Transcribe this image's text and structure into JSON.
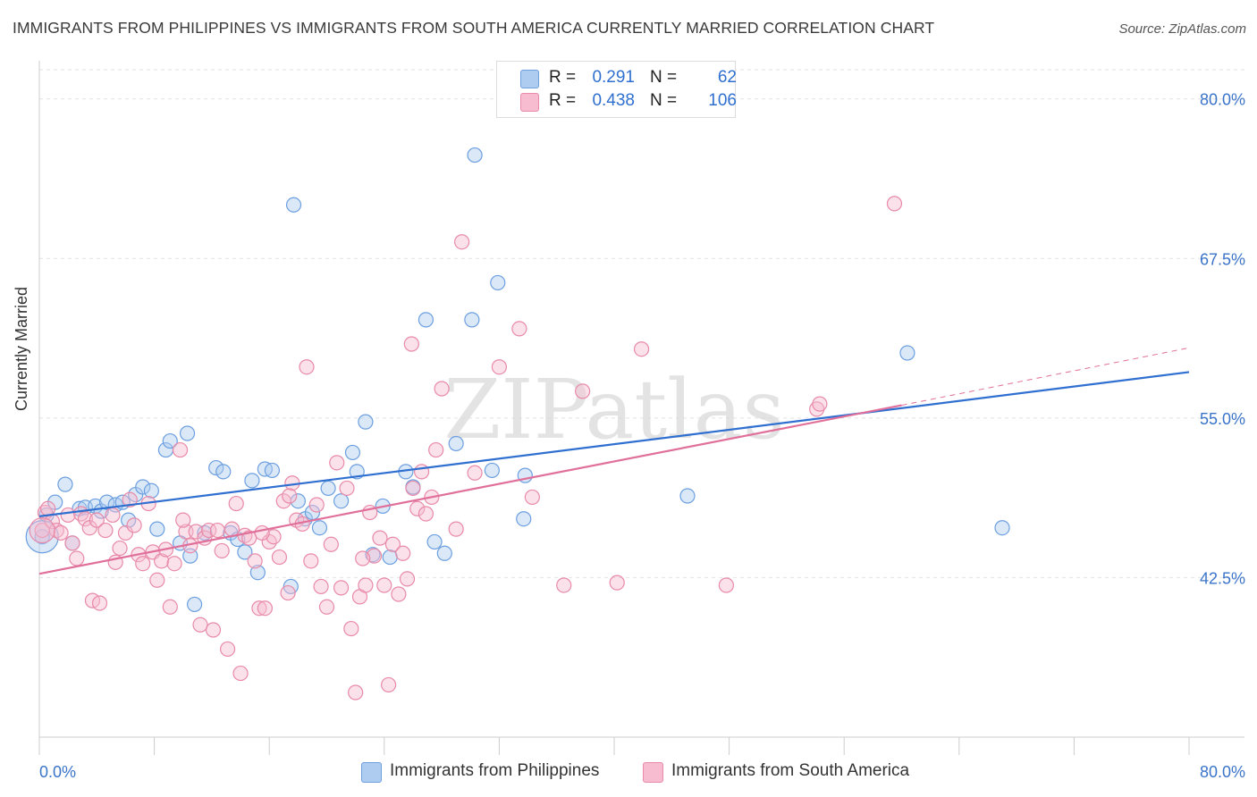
{
  "title": "IMMIGRANTS FROM PHILIPPINES VS IMMIGRANTS FROM SOUTH AMERICA CURRENTLY MARRIED CORRELATION CHART",
  "source": "Source: ZipAtlas.com",
  "watermark": "ZIPatlas",
  "legend": {
    "rows": [
      {
        "r_label": "R =",
        "r_value": "0.291",
        "n_label": "N =",
        "n_value": "62",
        "color": "#aecbf0",
        "border": "#6c9fe0"
      },
      {
        "r_label": "R =",
        "r_value": "0.438",
        "n_label": "N =",
        "n_value": "106",
        "color": "#f7bcd0",
        "border": "#e88aa8"
      }
    ]
  },
  "bottom_legend": [
    {
      "label": "Immigrants from Philippines",
      "color": "#aecbf0",
      "border": "#6c9fe0"
    },
    {
      "label": "Immigrants from South America",
      "color": "#f7bcd0",
      "border": "#e88aa8"
    }
  ],
  "chart_data": {
    "type": "scatter",
    "title": "IMMIGRANTS FROM PHILIPPINES VS IMMIGRANTS FROM SOUTH AMERICA CURRENTLY MARRIED CORRELATION CHART",
    "xlabel": "",
    "ylabel": "Currently Married",
    "xlim": [
      0,
      80
    ],
    "ylim": [
      30,
      82.5
    ],
    "x_tick_labels": [
      "0.0%",
      "80.0%"
    ],
    "y_tick_labels": [
      "42.5%",
      "55.0%",
      "67.5%",
      "80.0%"
    ],
    "y_ticks": [
      42.5,
      55.0,
      67.5,
      80.0
    ],
    "grid": true,
    "legend_position": "top-center",
    "series": [
      {
        "name": "Immigrants from Philippines",
        "color": "#6c9fe0",
        "fill": "#aecbf0",
        "trend": {
          "x": [
            0,
            80
          ],
          "y": [
            47.3,
            58.6
          ],
          "color": "#2f6fd0"
        },
        "points": [
          [
            0.2,
            45.7
          ],
          [
            0.5,
            47.4
          ],
          [
            1.1,
            48.4
          ],
          [
            1.8,
            49.8
          ],
          [
            2.3,
            45.2
          ],
          [
            2.8,
            47.9
          ],
          [
            3.2,
            48.0
          ],
          [
            3.9,
            48.1
          ],
          [
            4.3,
            47.7
          ],
          [
            4.7,
            48.4
          ],
          [
            5.3,
            48.2
          ],
          [
            5.8,
            48.4
          ],
          [
            6.2,
            47.0
          ],
          [
            6.7,
            49.0
          ],
          [
            7.2,
            49.6
          ],
          [
            7.8,
            49.3
          ],
          [
            8.2,
            46.3
          ],
          [
            8.8,
            52.5
          ],
          [
            9.1,
            53.2
          ],
          [
            9.8,
            45.2
          ],
          [
            10.3,
            53.8
          ],
          [
            10.5,
            44.2
          ],
          [
            10.8,
            40.4
          ],
          [
            11.5,
            46.0
          ],
          [
            12.3,
            51.1
          ],
          [
            12.8,
            50.8
          ],
          [
            13.3,
            46.0
          ],
          [
            13.8,
            45.5
          ],
          [
            14.3,
            44.5
          ],
          [
            14.8,
            50.1
          ],
          [
            15.2,
            42.9
          ],
          [
            15.7,
            51.0
          ],
          [
            16.2,
            50.9
          ],
          [
            17.5,
            41.8
          ],
          [
            17.7,
            71.7
          ],
          [
            18.0,
            48.5
          ],
          [
            18.5,
            47.1
          ],
          [
            19.0,
            47.6
          ],
          [
            19.5,
            46.4
          ],
          [
            20.1,
            49.5
          ],
          [
            21.0,
            48.5
          ],
          [
            21.8,
            52.3
          ],
          [
            22.1,
            50.8
          ],
          [
            22.7,
            54.7
          ],
          [
            23.2,
            44.3
          ],
          [
            23.9,
            48.1
          ],
          [
            24.4,
            44.1
          ],
          [
            25.5,
            50.8
          ],
          [
            26.0,
            49.6
          ],
          [
            26.9,
            62.7
          ],
          [
            27.5,
            45.3
          ],
          [
            28.2,
            44.4
          ],
          [
            29.0,
            53.0
          ],
          [
            30.1,
            62.7
          ],
          [
            30.3,
            75.6
          ],
          [
            31.5,
            50.9
          ],
          [
            31.9,
            65.6
          ],
          [
            33.8,
            50.5
          ],
          [
            33.7,
            47.1
          ],
          [
            45.1,
            48.9
          ],
          [
            60.4,
            60.1
          ],
          [
            67.0,
            46.4
          ]
        ]
      },
      {
        "name": "Immigrants from South America",
        "color": "#e88aa8",
        "fill": "#f7bcd0",
        "trend": {
          "x": [
            0,
            60
          ],
          "y": [
            42.8,
            56.0
          ],
          "color": "#e06f9a"
        },
        "trend_dashed": {
          "x": [
            60,
            80
          ],
          "y": [
            56.0,
            60.5
          ]
        },
        "points": [
          [
            0.2,
            46.2
          ],
          [
            0.4,
            47.6
          ],
          [
            0.6,
            47.9
          ],
          [
            0.9,
            46.9
          ],
          [
            1.2,
            46.2
          ],
          [
            1.5,
            46.0
          ],
          [
            2.0,
            47.4
          ],
          [
            2.3,
            45.2
          ],
          [
            2.6,
            44.0
          ],
          [
            2.9,
            47.5
          ],
          [
            3.2,
            47.1
          ],
          [
            3.5,
            46.4
          ],
          [
            3.7,
            40.7
          ],
          [
            4.0,
            47.0
          ],
          [
            4.2,
            40.5
          ],
          [
            4.6,
            46.2
          ],
          [
            5.1,
            47.4
          ],
          [
            5.3,
            43.7
          ],
          [
            5.6,
            44.8
          ],
          [
            6.0,
            46.0
          ],
          [
            6.3,
            48.6
          ],
          [
            6.6,
            46.6
          ],
          [
            6.9,
            44.3
          ],
          [
            7.2,
            43.6
          ],
          [
            7.6,
            48.3
          ],
          [
            7.9,
            44.5
          ],
          [
            8.2,
            42.3
          ],
          [
            8.5,
            43.8
          ],
          [
            8.8,
            44.7
          ],
          [
            9.1,
            40.2
          ],
          [
            9.4,
            43.6
          ],
          [
            9.8,
            52.5
          ],
          [
            10.2,
            46.1
          ],
          [
            10.5,
            45.0
          ],
          [
            10.9,
            46.1
          ],
          [
            11.2,
            38.8
          ],
          [
            11.5,
            45.6
          ],
          [
            11.8,
            46.2
          ],
          [
            12.1,
            38.4
          ],
          [
            12.4,
            46.2
          ],
          [
            12.7,
            44.6
          ],
          [
            13.1,
            36.9
          ],
          [
            13.4,
            46.3
          ],
          [
            13.7,
            48.3
          ],
          [
            14.0,
            35.0
          ],
          [
            14.3,
            45.8
          ],
          [
            14.6,
            45.6
          ],
          [
            15.0,
            43.8
          ],
          [
            15.3,
            40.1
          ],
          [
            15.7,
            40.1
          ],
          [
            16.0,
            45.3
          ],
          [
            16.3,
            45.7
          ],
          [
            16.7,
            44.1
          ],
          [
            17.0,
            48.5
          ],
          [
            17.3,
            41.3
          ],
          [
            17.6,
            49.9
          ],
          [
            17.9,
            47.0
          ],
          [
            18.3,
            46.7
          ],
          [
            18.6,
            59.0
          ],
          [
            18.9,
            43.8
          ],
          [
            19.3,
            48.2
          ],
          [
            19.6,
            41.8
          ],
          [
            20.0,
            40.2
          ],
          [
            20.3,
            45.1
          ],
          [
            20.7,
            51.5
          ],
          [
            21.0,
            41.7
          ],
          [
            21.4,
            49.5
          ],
          [
            21.7,
            38.5
          ],
          [
            22.0,
            33.5
          ],
          [
            22.3,
            41.0
          ],
          [
            22.7,
            41.9
          ],
          [
            23.0,
            47.6
          ],
          [
            23.3,
            44.2
          ],
          [
            23.7,
            45.6
          ],
          [
            24.0,
            41.9
          ],
          [
            24.3,
            34.1
          ],
          [
            24.6,
            45.1
          ],
          [
            25.0,
            41.2
          ],
          [
            25.3,
            44.4
          ],
          [
            25.6,
            42.4
          ],
          [
            25.9,
            60.8
          ],
          [
            26.3,
            47.9
          ],
          [
            26.6,
            50.8
          ],
          [
            26.9,
            47.5
          ],
          [
            27.3,
            48.8
          ],
          [
            27.6,
            52.5
          ],
          [
            28.0,
            57.3
          ],
          [
            29.0,
            46.3
          ],
          [
            29.4,
            68.8
          ],
          [
            30.3,
            50.7
          ],
          [
            32.0,
            59.0
          ],
          [
            33.4,
            62.0
          ],
          [
            34.3,
            48.8
          ],
          [
            36.5,
            41.9
          ],
          [
            37.8,
            57.1
          ],
          [
            40.2,
            42.1
          ],
          [
            41.9,
            60.4
          ],
          [
            47.8,
            41.9
          ],
          [
            54.1,
            55.7
          ],
          [
            54.3,
            56.1
          ],
          [
            59.5,
            71.8
          ],
          [
            15.5,
            46.0
          ],
          [
            26.0,
            49.5
          ],
          [
            17.4,
            48.9
          ],
          [
            22.5,
            44.0
          ],
          [
            10.0,
            47.0
          ]
        ]
      }
    ]
  }
}
